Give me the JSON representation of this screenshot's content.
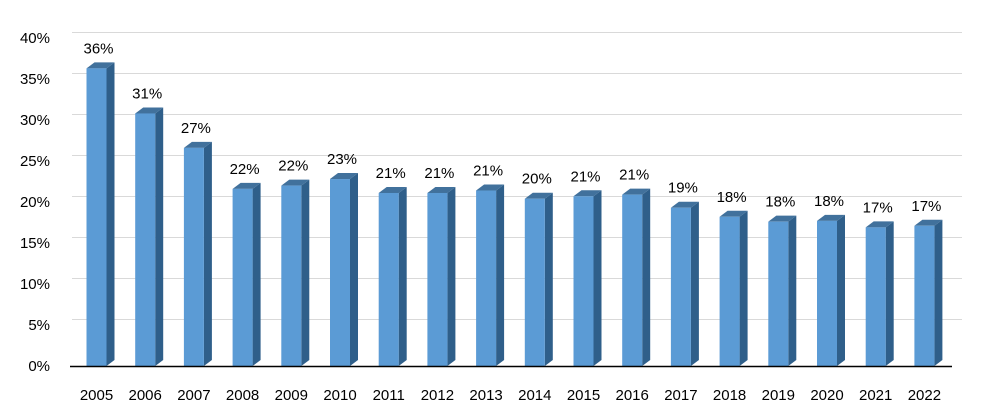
{
  "chart_data": {
    "type": "bar",
    "style": "3d-column",
    "categories": [
      "2005",
      "2006",
      "2007",
      "2008",
      "2009",
      "2010",
      "2011",
      "2012",
      "2013",
      "2014",
      "2015",
      "2016",
      "2017",
      "2018",
      "2019",
      "2020",
      "2021",
      "2022"
    ],
    "values": [
      36.3,
      30.8,
      26.6,
      21.6,
      22.0,
      22.8,
      21.1,
      21.1,
      21.4,
      20.4,
      20.7,
      20.9,
      19.3,
      18.2,
      17.6,
      17.7,
      16.9,
      17.1
    ],
    "data_labels": [
      "36%",
      "31%",
      "27%",
      "22%",
      "22%",
      "23%",
      "21%",
      "21%",
      "21%",
      "20%",
      "21%",
      "21%",
      "19%",
      "18%",
      "18%",
      "18%",
      "17%",
      "17%"
    ],
    "y_ticks": [
      "0%",
      "5%",
      "10%",
      "15%",
      "20%",
      "25%",
      "30%",
      "35%",
      "40%"
    ],
    "ylim": [
      0,
      40
    ],
    "title": "",
    "xlabel": "",
    "ylabel": "",
    "grid": true,
    "legend": "none",
    "colors": {
      "bar_front": "#5B9BD5",
      "bar_side": "#2F5F8A",
      "bar_top": "#41719C",
      "grid": "#D9D9D9",
      "axis": "#000000"
    }
  }
}
